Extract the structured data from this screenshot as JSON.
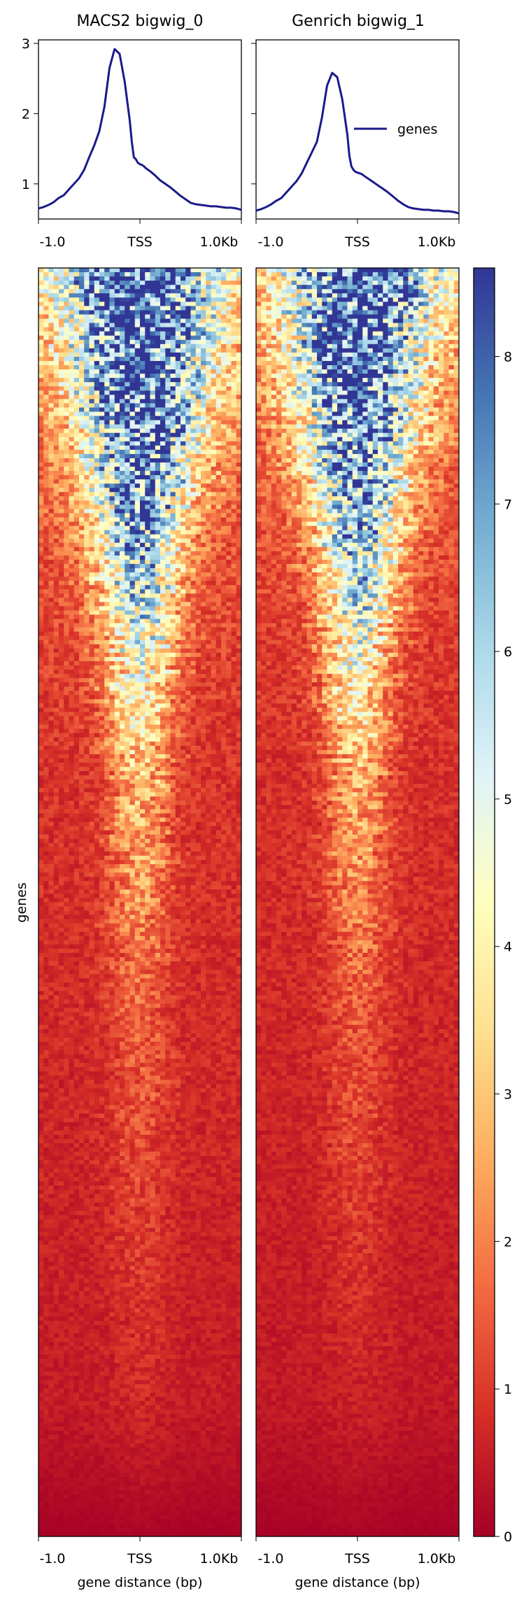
{
  "chart_data": [
    {
      "type": "line",
      "title": "MACS2 bigwig_0",
      "xlabel": "",
      "ylabel": "",
      "x_ticks": [
        "-1.0",
        "TSS",
        "1.0Kb"
      ],
      "y_ticks": [
        1,
        2,
        3
      ],
      "ylim": [
        0.5,
        3.05
      ],
      "x": [
        -1000,
        -950,
        -900,
        -850,
        -800,
        -750,
        -700,
        -650,
        -600,
        -550,
        -500,
        -450,
        -400,
        -350,
        -300,
        -250,
        -200,
        -150,
        -100,
        -80,
        -60,
        -40,
        -20,
        0,
        20,
        40,
        60,
        80,
        100,
        150,
        200,
        250,
        300,
        350,
        400,
        450,
        500,
        550,
        600,
        650,
        700,
        750,
        800,
        850,
        900,
        950,
        1000
      ],
      "series": [
        {
          "name": "genes",
          "color": "#1a1a8c",
          "values": [
            0.65,
            0.67,
            0.7,
            0.74,
            0.8,
            0.84,
            0.92,
            1.0,
            1.08,
            1.2,
            1.38,
            1.55,
            1.75,
            2.1,
            2.65,
            2.92,
            2.85,
            2.45,
            1.9,
            1.6,
            1.38,
            1.35,
            1.3,
            1.28,
            1.27,
            1.25,
            1.22,
            1.2,
            1.18,
            1.12,
            1.05,
            1.0,
            0.95,
            0.89,
            0.83,
            0.78,
            0.73,
            0.71,
            0.7,
            0.69,
            0.68,
            0.68,
            0.67,
            0.66,
            0.66,
            0.65,
            0.63
          ]
        }
      ]
    },
    {
      "type": "line",
      "title": "Genrich bigwig_1",
      "xlabel": "",
      "ylabel": "",
      "x_ticks": [
        "-1.0",
        "TSS",
        "1.0Kb"
      ],
      "legend": {
        "label": "genes",
        "placement": "upper-right"
      },
      "x": [
        -1000,
        -950,
        -900,
        -850,
        -800,
        -750,
        -700,
        -650,
        -600,
        -550,
        -500,
        -450,
        -400,
        -350,
        -300,
        -250,
        -200,
        -150,
        -100,
        -80,
        -60,
        -40,
        -20,
        0,
        20,
        40,
        60,
        80,
        100,
        150,
        200,
        250,
        300,
        350,
        400,
        450,
        500,
        550,
        600,
        650,
        700,
        750,
        800,
        850,
        900,
        950,
        1000
      ],
      "series": [
        {
          "name": "genes",
          "color": "#1a1a8c",
          "values": [
            0.62,
            0.64,
            0.67,
            0.71,
            0.76,
            0.8,
            0.88,
            0.96,
            1.04,
            1.15,
            1.3,
            1.45,
            1.6,
            1.95,
            2.4,
            2.58,
            2.52,
            2.2,
            1.7,
            1.4,
            1.25,
            1.2,
            1.17,
            1.16,
            1.15,
            1.14,
            1.12,
            1.1,
            1.08,
            1.03,
            0.98,
            0.93,
            0.88,
            0.82,
            0.76,
            0.71,
            0.67,
            0.65,
            0.64,
            0.63,
            0.63,
            0.62,
            0.62,
            0.61,
            0.61,
            0.6,
            0.58
          ]
        }
      ]
    },
    {
      "type": "heatmap",
      "title": "MACS2 bigwig_0",
      "xlabel": "gene distance (bp)",
      "ylabel": "genes",
      "x_ticks": [
        "-1.0",
        "TSS",
        "1.0Kb"
      ],
      "colormap": "RdYlBu",
      "zlim": [
        0,
        8.6
      ],
      "colorbar_ticks": [
        0,
        1,
        2,
        3,
        4,
        5,
        6,
        7,
        8
      ],
      "colorbar_stops": [
        "#a50026",
        "#d73027",
        "#f46d43",
        "#fdae61",
        "#fee090",
        "#ffffbf",
        "#e0f3f8",
        "#abd9e9",
        "#74add1",
        "#4575b4",
        "#313695"
      ],
      "row_profile": [
        {
          "row_frac": 0.0,
          "peak": 8.6,
          "width_frac": 0.3,
          "base": 2.2
        },
        {
          "row_frac": 0.1,
          "peak": 8.3,
          "width_frac": 0.24,
          "base": 1.8
        },
        {
          "row_frac": 0.2,
          "peak": 7.0,
          "width_frac": 0.16,
          "base": 1.4
        },
        {
          "row_frac": 0.3,
          "peak": 5.0,
          "width_frac": 0.12,
          "base": 1.1
        },
        {
          "row_frac": 0.4,
          "peak": 3.0,
          "width_frac": 0.1,
          "base": 0.9
        },
        {
          "row_frac": 0.6,
          "peak": 1.5,
          "width_frac": 0.1,
          "base": 0.75
        },
        {
          "row_frac": 0.9,
          "peak": 0.7,
          "width_frac": 0.1,
          "base": 0.5
        },
        {
          "row_frac": 1.0,
          "peak": 0.1,
          "width_frac": 0.1,
          "base": 0.05
        }
      ]
    },
    {
      "type": "heatmap",
      "title": "Genrich bigwig_1",
      "xlabel": "gene distance (bp)",
      "x_ticks": [
        "-1.0",
        "TSS",
        "1.0Kb"
      ],
      "colormap": "RdYlBu",
      "zlim": [
        0,
        8.6
      ],
      "row_profile": [
        {
          "row_frac": 0.0,
          "peak": 8.6,
          "width_frac": 0.28,
          "base": 2.0
        },
        {
          "row_frac": 0.1,
          "peak": 8.2,
          "width_frac": 0.22,
          "base": 1.6
        },
        {
          "row_frac": 0.2,
          "peak": 6.8,
          "width_frac": 0.15,
          "base": 1.3
        },
        {
          "row_frac": 0.3,
          "peak": 4.8,
          "width_frac": 0.11,
          "base": 1.0
        },
        {
          "row_frac": 0.4,
          "peak": 2.8,
          "width_frac": 0.1,
          "base": 0.85
        },
        {
          "row_frac": 0.6,
          "peak": 1.4,
          "width_frac": 0.1,
          "base": 0.7
        },
        {
          "row_frac": 0.9,
          "peak": 0.6,
          "width_frac": 0.1,
          "base": 0.45
        },
        {
          "row_frac": 1.0,
          "peak": 0.1,
          "width_frac": 0.1,
          "base": 0.05
        }
      ]
    }
  ]
}
